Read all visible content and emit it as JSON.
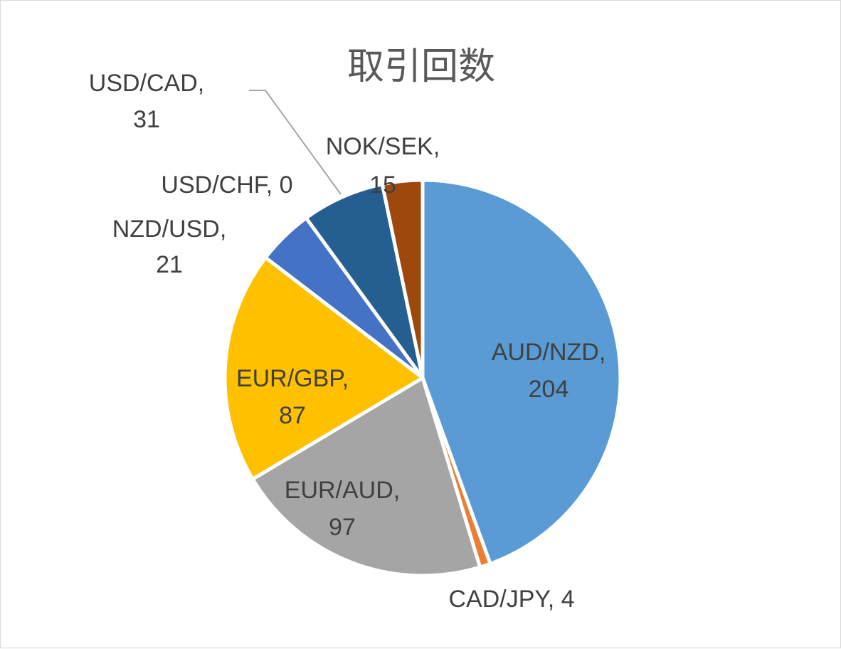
{
  "chart_data": {
    "type": "pie",
    "title": "取引回数",
    "slices": [
      {
        "name": "AUD/NZD",
        "value": 204,
        "color": "#5b9bd5",
        "label_line1": "AUD/NZD,",
        "label_line2": "204"
      },
      {
        "name": "CAD/JPY",
        "value": 4,
        "color": "#ed7d31",
        "label_line1": "CAD/JPY, 4",
        "label_line2": ""
      },
      {
        "name": "EUR/AUD",
        "value": 97,
        "color": "#a5a5a5",
        "label_line1": "EUR/AUD,",
        "label_line2": "97"
      },
      {
        "name": "EUR/GBP",
        "value": 87,
        "color": "#ffc000",
        "label_line1": "EUR/GBP,",
        "label_line2": "87"
      },
      {
        "name": "NZD/USD",
        "value": 21,
        "color": "#4472c4",
        "label_line1": "NZD/USD,",
        "label_line2": "21"
      },
      {
        "name": "USD/CAD",
        "value": 31,
        "color": "#255e91",
        "label_line1": "USD/CAD,",
        "label_line2": "31"
      },
      {
        "name": "USD/CHF",
        "value": 0,
        "color": "#636363",
        "label_line1": "USD/CHF, 0",
        "label_line2": ""
      },
      {
        "name": "NOK/SEK",
        "value": 15,
        "color": "#9e480e",
        "label_line1": "NOK/SEK,",
        "label_line2": "15"
      }
    ],
    "legend": "none",
    "data_labels": "category name and value"
  }
}
